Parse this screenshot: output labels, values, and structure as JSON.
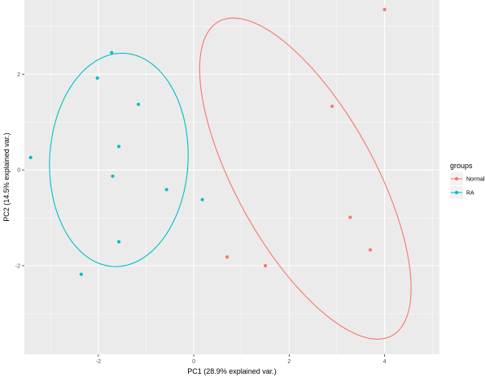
{
  "chart_data": {
    "type": "scatter",
    "xlabel": "PC1 (28.9% explained var.)",
    "ylabel": "PC2 (14.5% explained var.)",
    "xlim": [
      -3.55,
      5.15
    ],
    "ylim": [
      -3.85,
      3.55
    ],
    "x_ticks": [
      -2,
      0,
      2,
      4
    ],
    "y_ticks": [
      -2,
      0,
      2
    ],
    "x_tick_labels": [
      "-2",
      "0",
      "2",
      "4"
    ],
    "y_tick_labels": [
      "-2",
      "0",
      "2"
    ],
    "grid": true,
    "legend": {
      "title": "groups",
      "placement": "right"
    },
    "series": [
      {
        "name": "Normal",
        "color": "#F8766D",
        "points": [
          {
            "x": 4.0,
            "y": 3.35
          },
          {
            "x": 2.9,
            "y": 1.33
          },
          {
            "x": 3.28,
            "y": -0.99
          },
          {
            "x": 3.7,
            "y": -1.67
          },
          {
            "x": 1.5,
            "y": -2.0
          },
          {
            "x": 0.7,
            "y": -1.82
          }
        ],
        "ellipse": {
          "cx": 2.34,
          "cy": -0.18,
          "rx": 1.45,
          "ry": 3.75,
          "angle_deg": 29
        }
      },
      {
        "name": "RA",
        "color": "#00BFC4",
        "points": [
          {
            "x": -1.72,
            "y": 2.45
          },
          {
            "x": -2.02,
            "y": 1.92
          },
          {
            "x": -1.16,
            "y": 1.37
          },
          {
            "x": -3.42,
            "y": 0.26
          },
          {
            "x": -1.57,
            "y": 0.49
          },
          {
            "x": -1.7,
            "y": -0.13
          },
          {
            "x": -0.57,
            "y": -0.41
          },
          {
            "x": 0.18,
            "y": -0.62
          },
          {
            "x": -1.57,
            "y": -1.5
          },
          {
            "x": -2.36,
            "y": -2.18
          }
        ],
        "ellipse": {
          "cx": -1.57,
          "cy": 0.21,
          "rx": 1.45,
          "ry": 2.23,
          "angle_deg": -3
        }
      }
    ]
  }
}
